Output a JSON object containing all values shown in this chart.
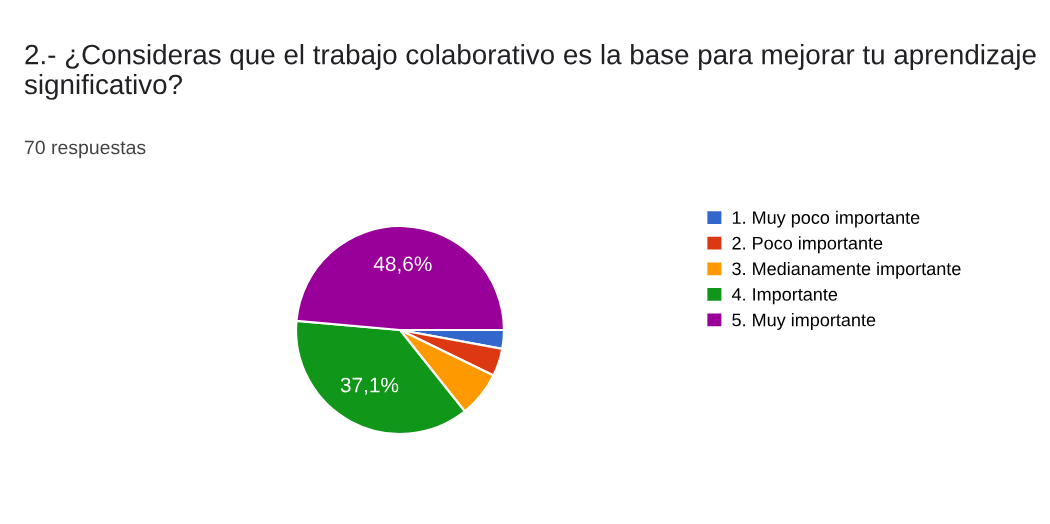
{
  "chart_data": {
    "type": "pie",
    "title": "2.- ¿Consideras que el trabajo colaborativo es la base para mejorar tu aprendizaje significativo?",
    "subtitle": "70 respuestas",
    "categories": [
      "1. Muy poco importante",
      "2. Poco importante",
      "3. Medianamente importante",
      "4. Importante",
      "5. Muy importante"
    ],
    "values": [
      2.9,
      4.3,
      7.1,
      37.1,
      48.6
    ],
    "colors": [
      "#3366cc",
      "#dc3912",
      "#ff9900",
      "#109618",
      "#990099"
    ],
    "value_labels": [
      null,
      null,
      null,
      "37,1%",
      "48,6%"
    ],
    "legend": "right"
  }
}
